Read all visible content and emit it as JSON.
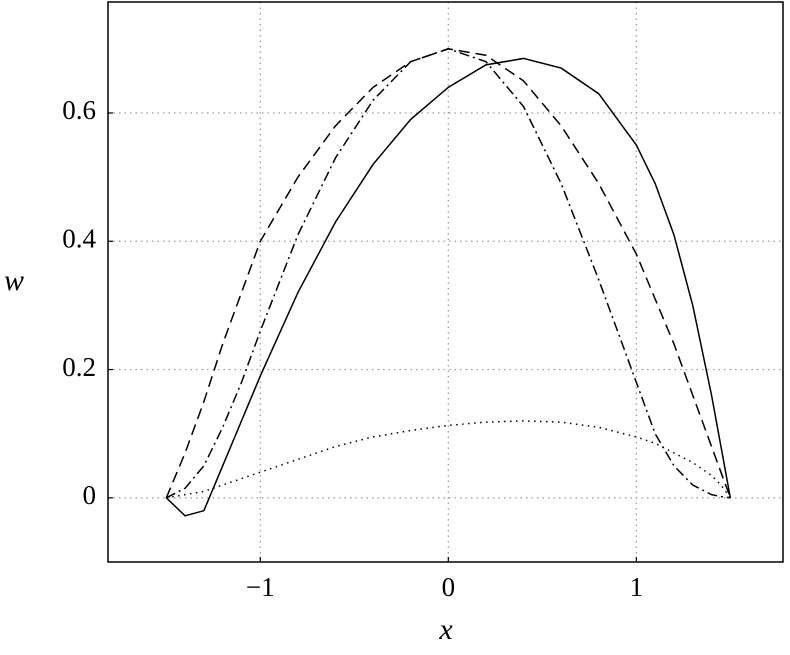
{
  "chart_data": {
    "type": "line",
    "x_label": "x",
    "y_label": "w",
    "x": [
      -1.5,
      -1.4,
      -1.3,
      -1.2,
      -1.1,
      -1.0,
      -0.8,
      -0.6,
      -0.4,
      -0.2,
      0,
      0.2,
      0.4,
      0.6,
      0.8,
      1.0,
      1.1,
      1.2,
      1.3,
      1.4,
      1.45,
      1.5
    ],
    "series": [
      {
        "color": "#000000",
        "dash": "solid",
        "values": [
          0,
          -0.028,
          -0.02,
          0.05,
          0.12,
          0.19,
          0.32,
          0.43,
          0.52,
          0.59,
          0.64,
          0.675,
          0.685,
          0.67,
          0.63,
          0.55,
          0.49,
          0.41,
          0.3,
          0.16,
          0.08,
          0
        ]
      },
      {
        "color": "#000000",
        "dash": "dashed",
        "values": [
          0,
          0.07,
          0.15,
          0.24,
          0.32,
          0.4,
          0.5,
          0.58,
          0.64,
          0.68,
          0.7,
          0.69,
          0.65,
          0.58,
          0.49,
          0.38,
          0.31,
          0.24,
          0.16,
          0.08,
          0.04,
          0
        ]
      },
      {
        "color": "#000000",
        "dash": "dashdot",
        "values": [
          0,
          0.015,
          0.05,
          0.11,
          0.18,
          0.26,
          0.41,
          0.53,
          0.62,
          0.68,
          0.7,
          0.68,
          0.61,
          0.49,
          0.34,
          0.18,
          0.1,
          0.05,
          0.02,
          0.005,
          0.002,
          0
        ]
      },
      {
        "color": "#000000",
        "dash": "dotted",
        "values": [
          0,
          0.005,
          0.01,
          0.02,
          0.03,
          0.04,
          0.06,
          0.08,
          0.095,
          0.105,
          0.113,
          0.118,
          0.12,
          0.118,
          0.11,
          0.095,
          0.085,
          0.07,
          0.055,
          0.035,
          0.02,
          0
        ]
      }
    ],
    "xlim": [
      -1.81,
      1.78
    ],
    "ylim": [
      -0.1,
      0.773
    ],
    "xticks": [
      {
        "value": -1,
        "label": "−1"
      },
      0,
      1
    ],
    "yticks": [
      0,
      0.2,
      0.4,
      0.6
    ],
    "grid": true
  }
}
